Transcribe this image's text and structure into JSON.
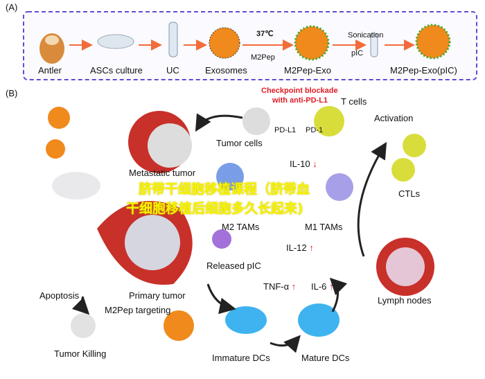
{
  "panel_a": {
    "label": "(A)",
    "steps": [
      "Antler",
      "ASCs culture",
      "UC",
      "Exosomes",
      "M2Pep-Exo",
      "M2Pep-Exo(pIC)"
    ],
    "temp": "37℃",
    "m2pep": "M2Pep",
    "sonication": "Sonication",
    "pic": "pIC"
  },
  "panel_b": {
    "label": "(B)",
    "checkpoint": "Checkpoint blockade",
    "checkpoint2": "with anti-PD-L1",
    "t_cells": "T cells",
    "pd_l1": "PD-L1",
    "pd_1": "PD-1",
    "activation": "Activation",
    "tumor_cells": "Tumor cells",
    "metastatic": "Metastatic tumor",
    "il10": "IL-10",
    "m2_tams": "M2 TAMs",
    "m1_tams": "M1 TAMs",
    "ctls": "CTLs",
    "il12": "IL-12",
    "released_pic": "Released pIC",
    "primary": "Primary tumor",
    "apoptosis": "Apoptosis",
    "m2pep_targeting": "M2Pep targeting",
    "tnf": "TNF-α",
    "il6": "IL-6",
    "lymph": "Lymph nodes",
    "tumor_killing": "Tumor Killing",
    "immature": "Immature DCs",
    "mature": "Mature DCs",
    "down": "↓",
    "up": "↑"
  },
  "watermark": {
    "line1": "脐带干细胞移植课程（脐带血",
    "line2": "干细胞移植后细胞多久长起来)"
  },
  "colors": {
    "border": "#5b4fcf",
    "arrow": "#f26b3a",
    "red": "#e01b24",
    "watermark": "#f5f300"
  }
}
